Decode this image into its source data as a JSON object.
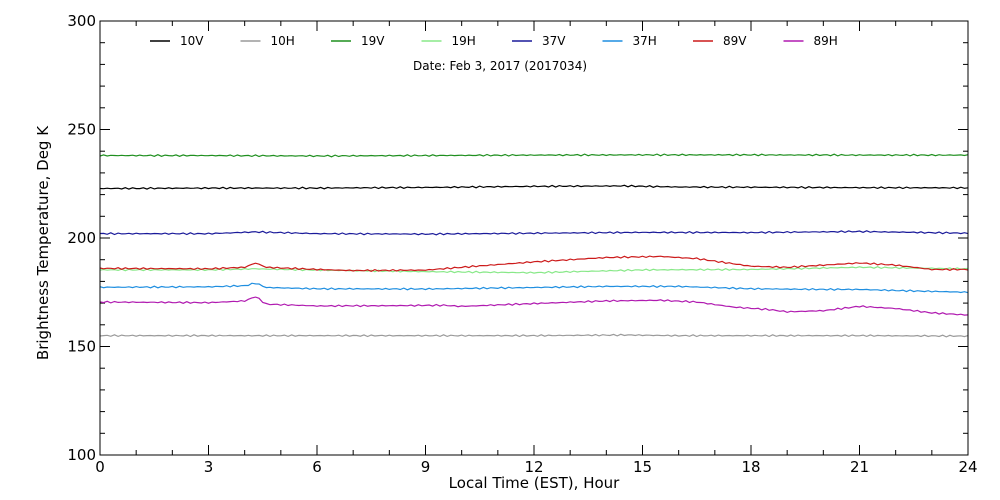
{
  "chart_data": {
    "type": "line",
    "subtitle": "Date: Feb  3, 2017 (2017034)",
    "xlabel": "Local Time (EST), Hour",
    "ylabel": "Brightness Temperature, Deg K",
    "xlim": [
      0,
      24
    ],
    "ylim": [
      100,
      300
    ],
    "xticks": [
      0,
      3,
      6,
      9,
      12,
      15,
      18,
      21,
      24
    ],
    "yticks": [
      100,
      150,
      200,
      250,
      300
    ],
    "grid": false,
    "legend_position": "top",
    "series": [
      {
        "name": "10V",
        "color": "#000000",
        "points": [
          [
            0,
            222.8
          ],
          [
            3,
            223
          ],
          [
            6,
            223
          ],
          [
            9,
            223.3
          ],
          [
            12,
            223.8
          ],
          [
            14.5,
            224
          ],
          [
            16,
            223.5
          ],
          [
            18,
            223.4
          ],
          [
            21,
            223.2
          ],
          [
            24,
            223.1
          ]
        ]
      },
      {
        "name": "10H",
        "color": "#9a9a9a",
        "points": [
          [
            0,
            155
          ],
          [
            3,
            155
          ],
          [
            6,
            155
          ],
          [
            9,
            155
          ],
          [
            12,
            155
          ],
          [
            14.5,
            155.3
          ],
          [
            16,
            155
          ],
          [
            18,
            155
          ],
          [
            21,
            155
          ],
          [
            24,
            154.8
          ]
        ]
      },
      {
        "name": "19V",
        "color": "#1f8f1f",
        "points": [
          [
            0,
            238
          ],
          [
            3,
            238
          ],
          [
            6,
            237.8
          ],
          [
            9,
            238
          ],
          [
            12,
            238.2
          ],
          [
            15,
            238.3
          ],
          [
            18,
            238.3
          ],
          [
            21,
            238.2
          ],
          [
            24,
            238.2
          ]
        ]
      },
      {
        "name": "19H",
        "color": "#88e888",
        "points": [
          [
            0,
            185.3
          ],
          [
            3,
            185.3
          ],
          [
            4.3,
            185.8
          ],
          [
            6,
            185.2
          ],
          [
            9,
            184.5
          ],
          [
            12,
            184
          ],
          [
            15,
            185.3
          ],
          [
            18,
            185.5
          ],
          [
            21,
            186.5
          ],
          [
            24,
            185.8
          ]
        ]
      },
      {
        "name": "37V",
        "color": "#1a1a9a",
        "points": [
          [
            0,
            202
          ],
          [
            3,
            202
          ],
          [
            4.3,
            202.8
          ],
          [
            6,
            202
          ],
          [
            9,
            201.8
          ],
          [
            12,
            202.2
          ],
          [
            15,
            202.6
          ],
          [
            18,
            202.5
          ],
          [
            21,
            203
          ],
          [
            24,
            202.2
          ]
        ]
      },
      {
        "name": "37H",
        "color": "#1e8ee0",
        "points": [
          [
            0,
            177.3
          ],
          [
            3,
            177.5
          ],
          [
            4,
            178
          ],
          [
            4.3,
            179.2
          ],
          [
            4.6,
            177.2
          ],
          [
            6,
            176.6
          ],
          [
            9,
            176.5
          ],
          [
            12,
            177.2
          ],
          [
            14,
            177.7
          ],
          [
            16,
            177.7
          ],
          [
            18,
            176.6
          ],
          [
            20,
            176.3
          ],
          [
            21,
            176.3
          ],
          [
            22,
            175.8
          ],
          [
            24,
            175
          ]
        ]
      },
      {
        "name": "89V",
        "color": "#cc1a1a",
        "points": [
          [
            0,
            186
          ],
          [
            3,
            185.8
          ],
          [
            4,
            186.5
          ],
          [
            4.3,
            188.5
          ],
          [
            4.6,
            186.5
          ],
          [
            6,
            185.5
          ],
          [
            7,
            185
          ],
          [
            9,
            185.2
          ],
          [
            10,
            186.5
          ],
          [
            12,
            189
          ],
          [
            14,
            191
          ],
          [
            15.5,
            191.5
          ],
          [
            16.5,
            190.5
          ],
          [
            18,
            187
          ],
          [
            19,
            186.5
          ],
          [
            20,
            187.5
          ],
          [
            21,
            188.5
          ],
          [
            22,
            187.5
          ],
          [
            23,
            185.5
          ],
          [
            24,
            185.5
          ]
        ]
      },
      {
        "name": "89H",
        "color": "#b01ab0",
        "points": [
          [
            0,
            170.5
          ],
          [
            3,
            170.2
          ],
          [
            4,
            171
          ],
          [
            4.3,
            173
          ],
          [
            4.6,
            169.5
          ],
          [
            6,
            168.7
          ],
          [
            8,
            168.8
          ],
          [
            9.5,
            169
          ],
          [
            10,
            168.5
          ],
          [
            12,
            169.8
          ],
          [
            14,
            171
          ],
          [
            15.5,
            171.3
          ],
          [
            16.5,
            170.5
          ],
          [
            17.5,
            168.2
          ],
          [
            18.5,
            167
          ],
          [
            19,
            166
          ],
          [
            20,
            166.5
          ],
          [
            21,
            168.5
          ],
          [
            22,
            167.5
          ],
          [
            23,
            165.5
          ],
          [
            24,
            164.5
          ]
        ]
      }
    ]
  }
}
